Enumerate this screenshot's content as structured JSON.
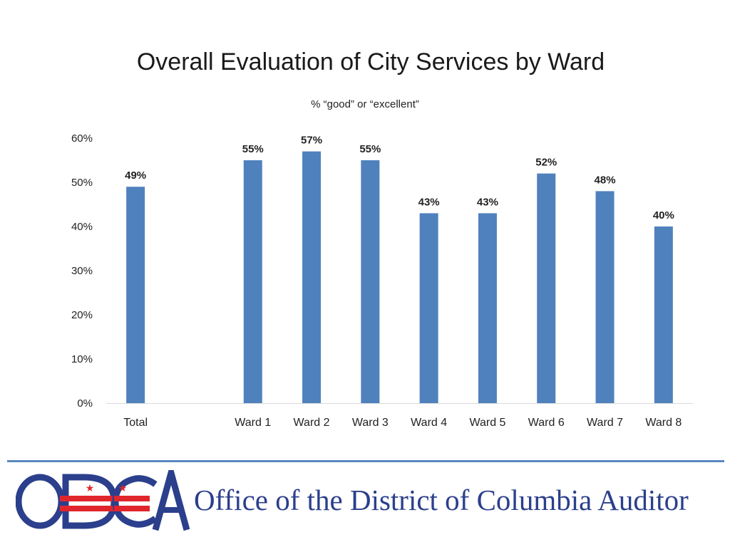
{
  "title": "Overall Evaluation of City Services by Ward",
  "subtitle": "% “good” or “excellent”",
  "chart_data": {
    "type": "bar",
    "categories": [
      "Total",
      "",
      "Ward 1",
      "Ward 2",
      "Ward 3",
      "Ward 4",
      "Ward 5",
      "Ward 6",
      "Ward 7",
      "Ward 8"
    ],
    "values": [
      49,
      null,
      55,
      57,
      55,
      43,
      43,
      52,
      48,
      40
    ],
    "data_labels": [
      "49%",
      "",
      "55%",
      "57%",
      "55%",
      "43%",
      "43%",
      "52%",
      "48%",
      "40%"
    ],
    "yticks": [
      0,
      10,
      20,
      30,
      40,
      50,
      60
    ],
    "ytick_labels": [
      "0%",
      "10%",
      "20%",
      "30%",
      "40%",
      "50%",
      "60%"
    ],
    "ylim": [
      0,
      60
    ],
    "grid": false,
    "bar_color": "#4f81bd"
  },
  "footer": {
    "logo_text": "ODCA",
    "org_name": "Office of the District of Columbia Auditor",
    "rule_color": "#5a87c2",
    "logo_blue": "#2b3f8c",
    "logo_red": "#e0262c"
  }
}
